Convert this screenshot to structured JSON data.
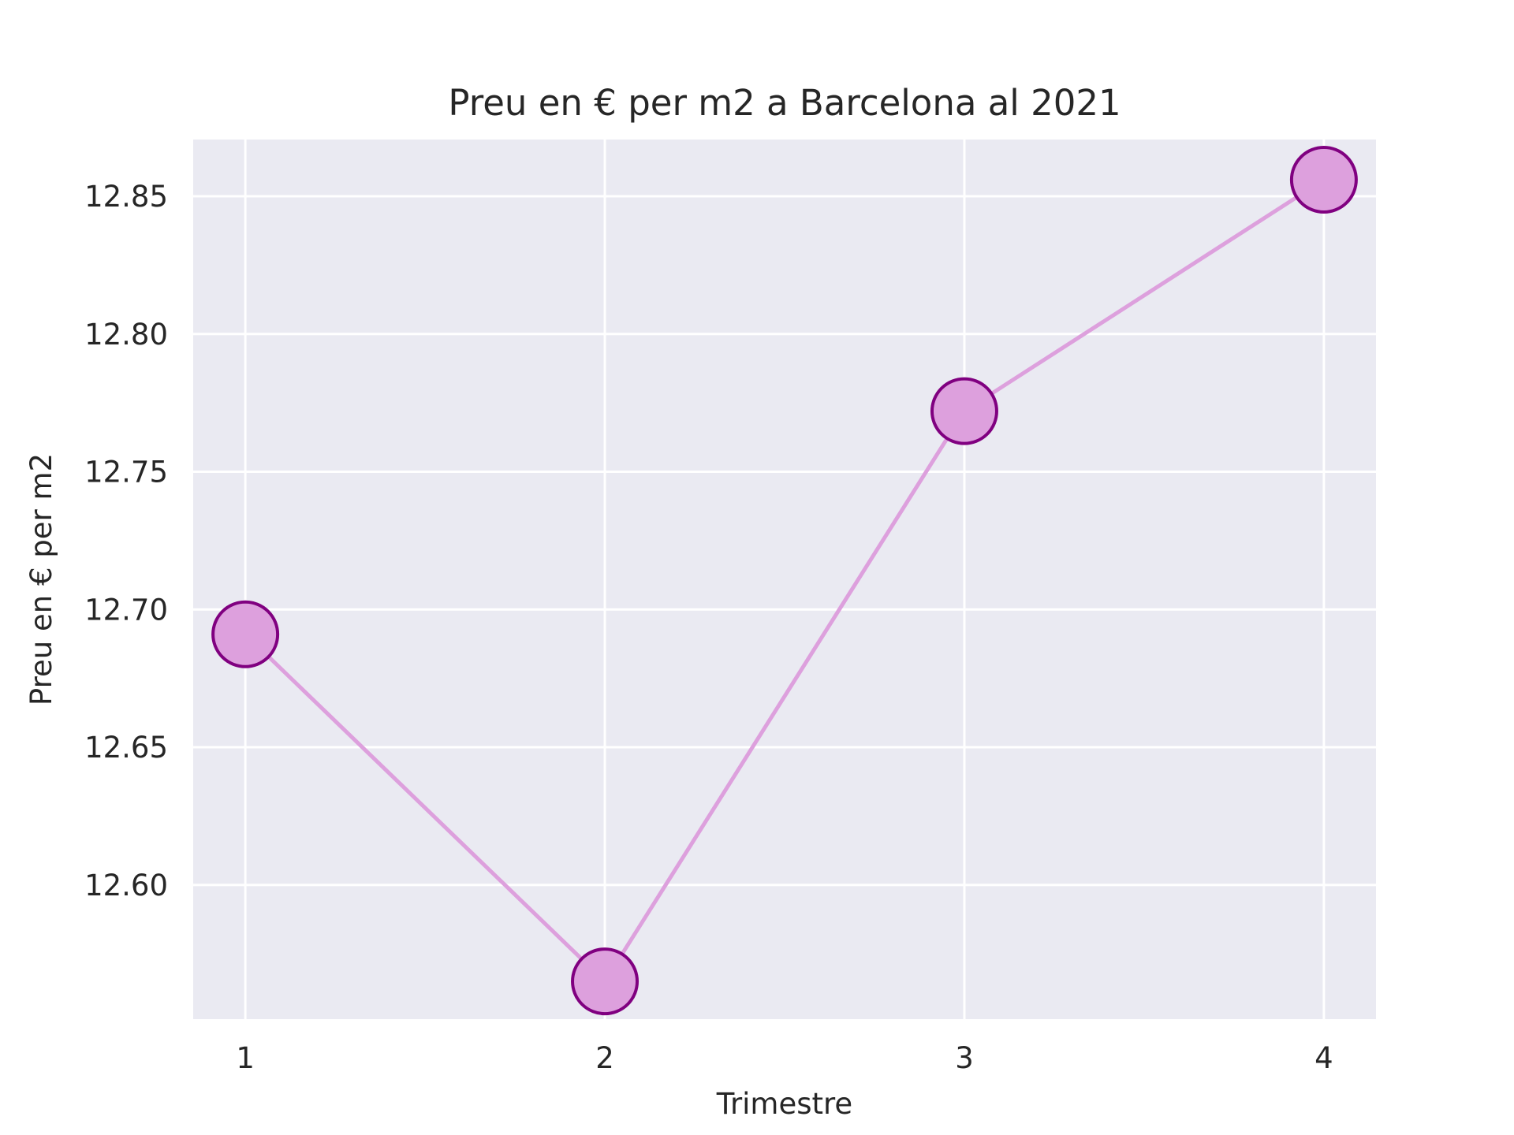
{
  "chart_data": {
    "type": "line",
    "title": "Preu en € per m2 a Barcelona al 2021",
    "xlabel": "Trimestre",
    "ylabel": "Preu en € per m2",
    "x": [
      1,
      2,
      3,
      4
    ],
    "xticks": [
      "1",
      "2",
      "3",
      "4"
    ],
    "series": [
      {
        "values": [
          12.691,
          12.565,
          12.772,
          12.856
        ]
      }
    ],
    "yticks": [
      "12.60",
      "12.65",
      "12.70",
      "12.75",
      "12.80",
      "12.85"
    ],
    "ytick_values": [
      12.6,
      12.65,
      12.7,
      12.75,
      12.8,
      12.85
    ],
    "xlim": [
      0.855,
      4.145
    ],
    "ylim": [
      12.5513,
      12.8706
    ],
    "grid": true,
    "colors": {
      "background": "#eaeaf2",
      "grid": "#ffffff",
      "line": "#dda0dd",
      "marker_fill": "#dda0dd",
      "marker_edge": "#800080",
      "text": "#262626"
    }
  }
}
